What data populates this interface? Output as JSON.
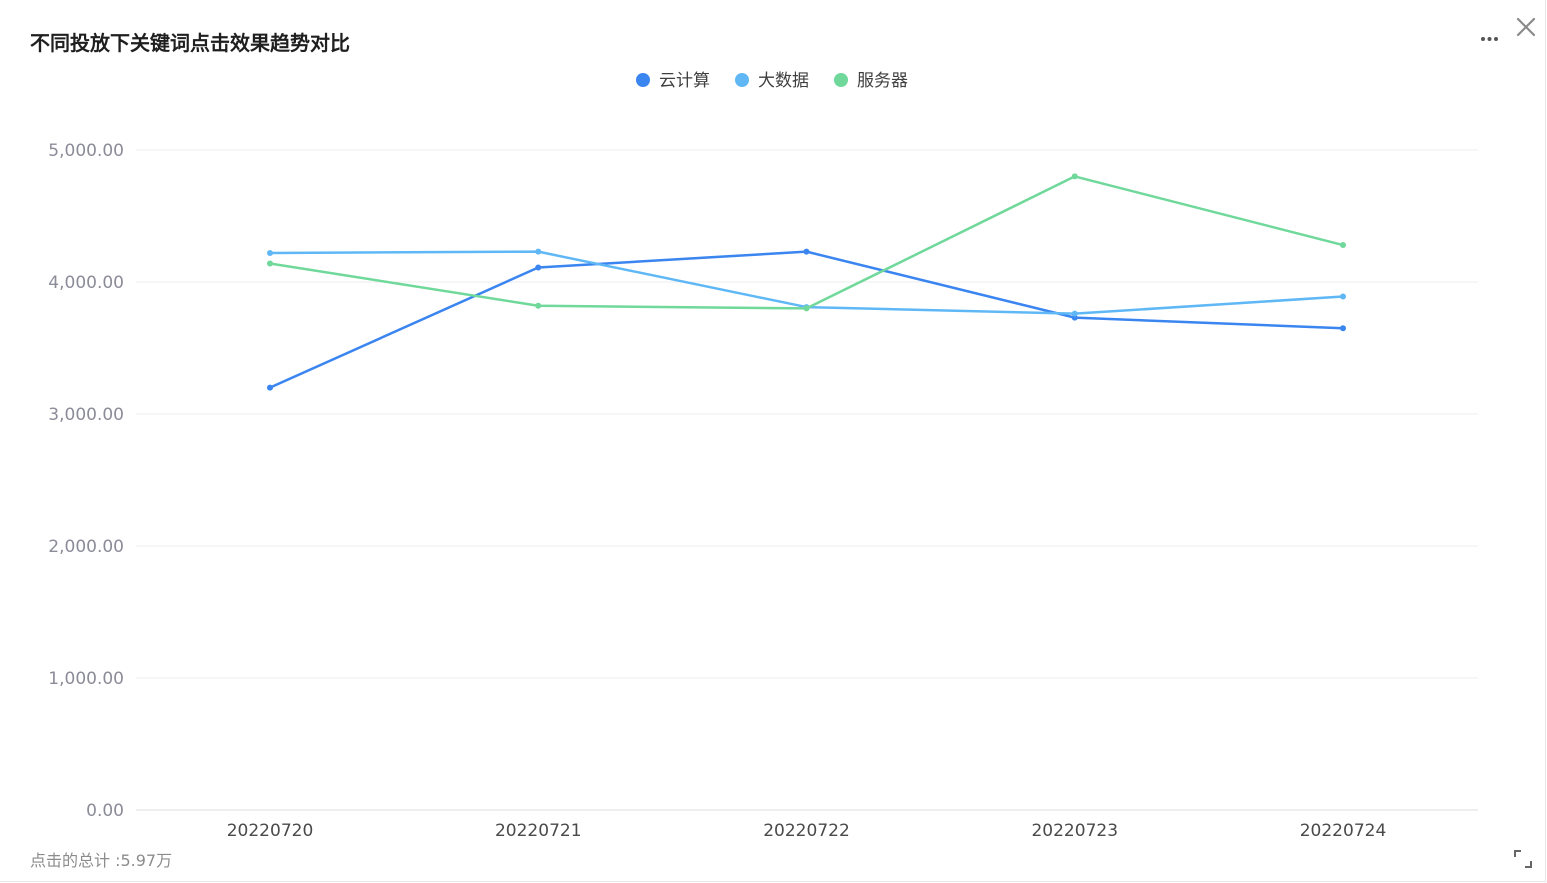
{
  "chart_data": {
    "type": "line",
    "title": "不同投放下关键词点击效果趋势对比",
    "categories": [
      "20220720",
      "20220721",
      "20220722",
      "20220723",
      "20220724"
    ],
    "y_tick_labels": [
      "0.00",
      "1,000.00",
      "2,000.00",
      "3,000.00",
      "4,000.00",
      "5,000.00"
    ],
    "ylim": [
      0,
      5000
    ],
    "grid": true,
    "legend_position": "top-center",
    "series": [
      {
        "name": "云计算",
        "color": "#3a85f0",
        "values": [
          3200,
          4110,
          4230,
          3730,
          3650
        ]
      },
      {
        "name": "大数据",
        "color": "#5fb8f5",
        "values": [
          4220,
          4230,
          3810,
          3760,
          3890
        ]
      },
      {
        "name": "服务器",
        "color": "#6fd89a",
        "values": [
          4140,
          3820,
          3800,
          4800,
          4280
        ]
      }
    ]
  },
  "footer": {
    "total_label": "点击的总计 :5.97万"
  },
  "icons": {
    "more": "more-horizontal-icon",
    "close": "close-icon",
    "expand": "expand-icon"
  }
}
